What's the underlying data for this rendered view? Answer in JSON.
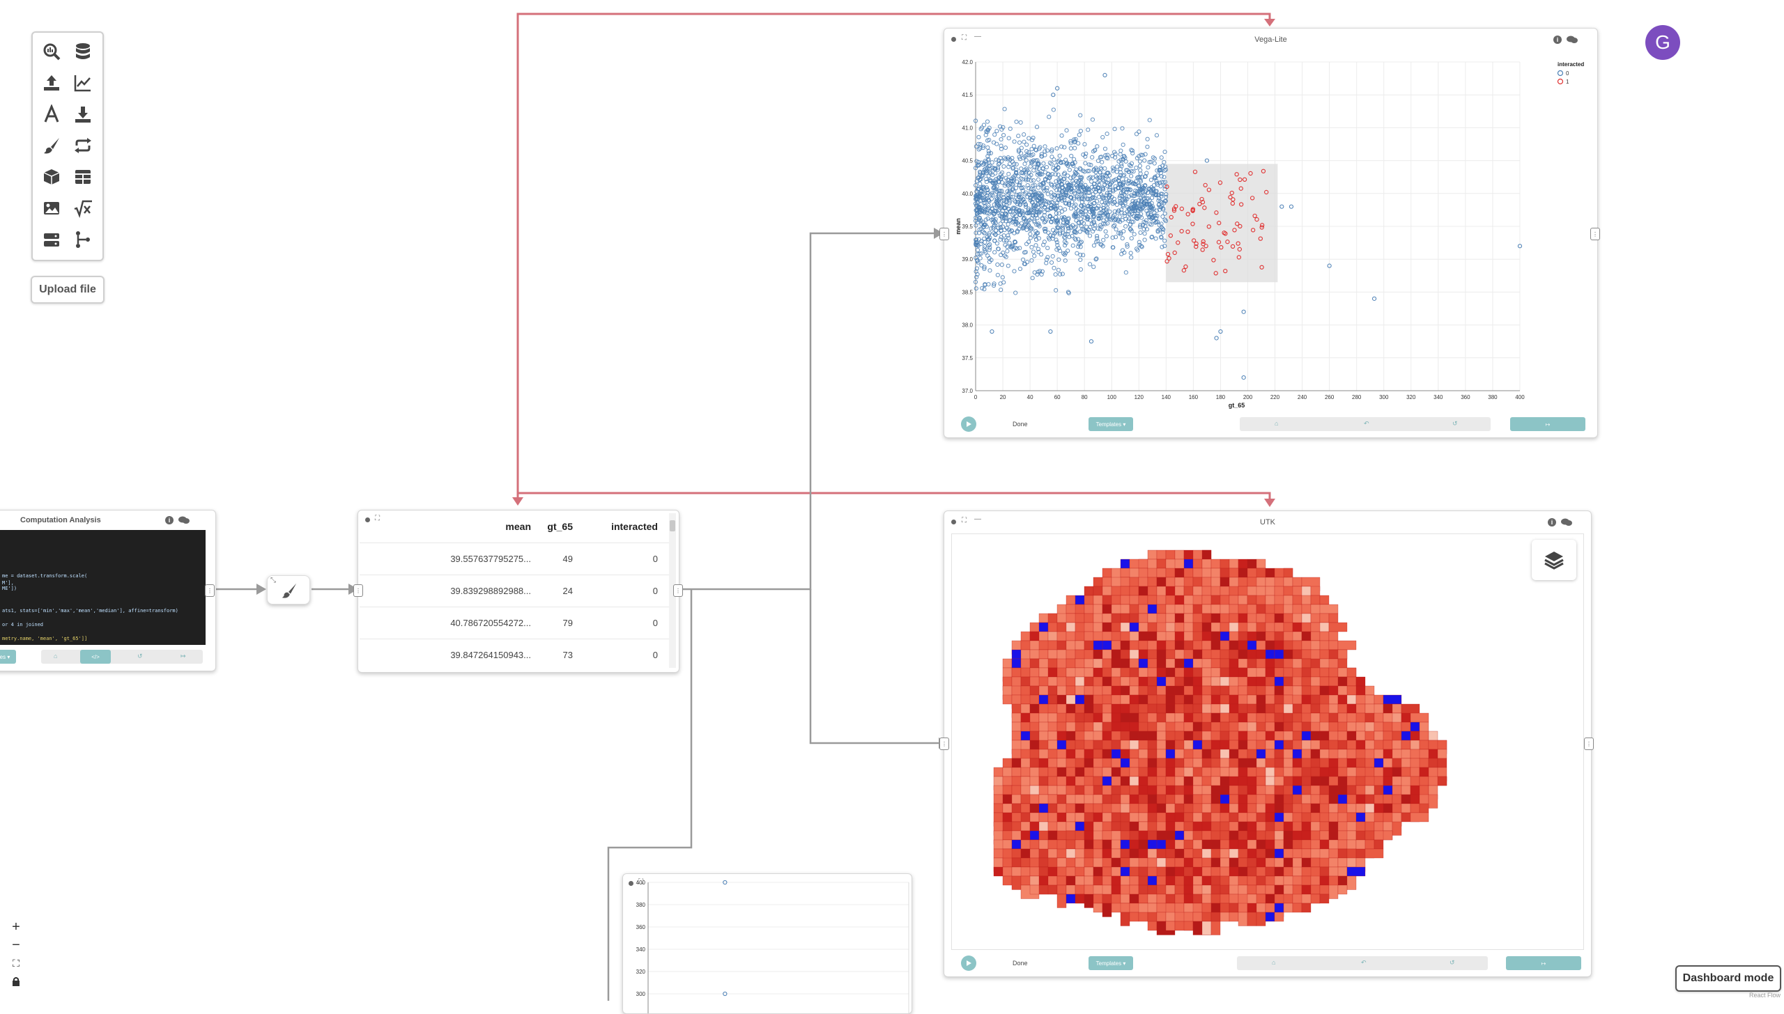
{
  "toolbar": {
    "tools": [
      {
        "name": "search-data-icon"
      },
      {
        "name": "database-icon"
      },
      {
        "name": "upload-icon"
      },
      {
        "name": "line-chart-icon"
      },
      {
        "name": "text-icon"
      },
      {
        "name": "download-icon"
      },
      {
        "name": "brush-icon"
      },
      {
        "name": "repeat-icon"
      },
      {
        "name": "cube-icon"
      },
      {
        "name": "table-icon"
      },
      {
        "name": "image-icon"
      },
      {
        "name": "sqrt-icon"
      },
      {
        "name": "server-icon"
      },
      {
        "name": "branch-icon"
      }
    ],
    "upload_label": "Upload file"
  },
  "user": {
    "avatar_initial": "G",
    "avatar_color": "#7c4dbf"
  },
  "vega": {
    "title": "Vega-Lite",
    "footer": {
      "done_label": "Done",
      "templates_label": "Templates ▾"
    }
  },
  "utk": {
    "title": "UTK",
    "footer": {
      "done_label": "Done",
      "templates_label": "Templates ▾"
    }
  },
  "computation": {
    "title": "Computation Analysis",
    "code_lines": [
      "me = dataset.transform.scale(",
      "M'],",
      "ME'])",
      "",
      "ats1, stats=['min','max','mean','median'], affine=transform)",
      "",
      "or 4 in joined",
      "",
      "metry.name, 'mean', 'gt_65']]"
    ],
    "footer": {
      "templates_label": "es ▾"
    }
  },
  "table": {
    "columns": [
      "mean",
      "gt_65",
      "interacted"
    ],
    "rows": [
      [
        "39.557637795275...",
        "49",
        "0"
      ],
      [
        "39.839298892988...",
        "24",
        "0"
      ],
      [
        "40.786720554272...",
        "79",
        "0"
      ],
      [
        "39.847264150943...",
        "73",
        "0"
      ]
    ]
  },
  "controls": {
    "zoom_in": "+",
    "zoom_out": "−",
    "fit": "⛶",
    "lock": "🔒"
  },
  "dashboard_label": "Dashboard mode",
  "attribution": "React Flow",
  "colors": {
    "accent": "#8cc4c6",
    "edge_pink": "#d4707a",
    "edge_gray": "#9a9a9a",
    "series0": "#4a7fb5",
    "series1": "#e03030"
  },
  "chart_data": [
    {
      "type": "scatter",
      "xlabel": "gt_65",
      "ylabel": "mean",
      "xlim": [
        0,
        400
      ],
      "ylim": [
        37.0,
        42.0
      ],
      "x_ticks": [
        "0",
        "20",
        "40",
        "60",
        "80",
        "100",
        "120",
        "140",
        "160",
        "180",
        "200",
        "220",
        "240",
        "260",
        "280",
        "300",
        "320",
        "340",
        "360",
        "380",
        "400"
      ],
      "y_ticks": [
        "37.0",
        "37.5",
        "38.0",
        "38.5",
        "39.0",
        "39.5",
        "40.0",
        "40.5",
        "41.0",
        "41.5",
        "42.0"
      ],
      "legend": {
        "title": "interacted",
        "entries": [
          "0",
          "1"
        ],
        "position": "top-right"
      },
      "series": [
        {
          "name": "0",
          "color": "#4a7fb5",
          "cluster": {
            "x_range": [
              0,
              140
            ],
            "y_center": 39.9,
            "y_spread": 0.55,
            "count": 1800
          },
          "outliers": [
            [
              95,
              41.8
            ],
            [
              57,
              41.5
            ],
            [
              60,
              41.6
            ],
            [
              170,
              40.5
            ],
            [
              225,
              39.8
            ],
            [
              232,
              39.8
            ],
            [
              260,
              38.9
            ],
            [
              293,
              38.4
            ],
            [
              400,
              39.2
            ],
            [
              197,
              38.2
            ],
            [
              180,
              37.9
            ],
            [
              197,
              37.2
            ],
            [
              177,
              37.8
            ],
            [
              12,
              37.9
            ],
            [
              55,
              37.9
            ],
            [
              85,
              37.75
            ]
          ]
        },
        {
          "name": "1",
          "color": "#e03030",
          "cluster": {
            "x_range": [
              140,
              215
            ],
            "y_center": 39.5,
            "y_spread": 0.45,
            "count": 80
          }
        }
      ],
      "selection": {
        "x": [
          140,
          222
        ],
        "y": [
          38.65,
          40.45
        ]
      },
      "grid": true
    },
    {
      "type": "scatter",
      "ylim": [
        300,
        400
      ],
      "y_ticks": [
        "300",
        "320",
        "340",
        "360",
        "380",
        "400"
      ],
      "points": [
        [
          0.5,
          400
        ],
        [
          0.5,
          300
        ]
      ],
      "grid": true
    }
  ]
}
